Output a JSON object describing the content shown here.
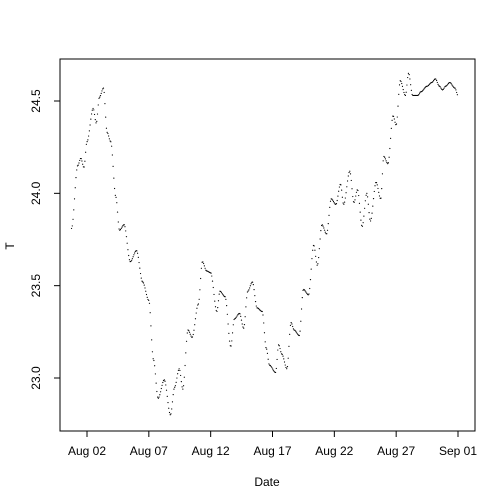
{
  "chart_data": {
    "type": "scatter",
    "xlabel": "Date",
    "ylabel": "T",
    "x_tick_labels": [
      "Aug 02",
      "Aug 07",
      "Aug 12",
      "Aug 17",
      "Aug 22",
      "Aug 27",
      "Sep 01"
    ],
    "x_tick_days": [
      2,
      7,
      12,
      17,
      22,
      27,
      32
    ],
    "y_ticks": [
      23.0,
      23.5,
      24.0,
      24.5
    ],
    "y_tick_labels": [
      "23.0",
      "23.5",
      "24.0",
      "24.5"
    ],
    "xlim": [
      "Jul 31",
      "Sep 02"
    ],
    "ylim": [
      22.73,
      24.76
    ],
    "grid": false,
    "point_style": "small black dots forming a continuous dotted curve",
    "series": [
      {
        "x": [
          "Jul 31 18:00",
          "Aug 01 06:00",
          "Aug 01 12:00",
          "Aug 01 18:00",
          "Aug 02 00:00",
          "Aug 02 12:00",
          "Aug 02 18:00",
          "Aug 03 00:00",
          "Aug 03 08:00",
          "Aug 03 15:00",
          "Aug 03 22:00",
          "Aug 04 08:00",
          "Aug 04 15:00",
          "Aug 05 00:00",
          "Aug 05 12:00",
          "Aug 06 00:00",
          "Aug 06 12:00",
          "Aug 07 00:00",
          "Aug 07 09:00",
          "Aug 07 18:00",
          "Aug 08 06:00",
          "Aug 08 18:00",
          "Aug 09 02:00",
          "Aug 09 11:00",
          "Aug 09 18:00",
          "Aug 10 04:00",
          "Aug 10 12:00",
          "Aug 11 00:00",
          "Aug 11 08:00",
          "Aug 11 16:00",
          "Aug 12 00:00",
          "Aug 12 12:00",
          "Aug 12 18:00",
          "Aug 13 04:00",
          "Aug 13 15:00",
          "Aug 13 22:00",
          "Aug 14 08:00",
          "Aug 14 16:00",
          "Aug 15 00:00",
          "Aug 15 09:00",
          "Aug 15 18:00",
          "Aug 16 04:00",
          "Aug 16 12:00",
          "Aug 16 18:00",
          "Aug 17 06:00",
          "Aug 17 12:00",
          "Aug 17 18:00",
          "Aug 18 04:00",
          "Aug 18 12:00",
          "Aug 18 18:00",
          "Aug 19 04:00",
          "Aug 19 12:00",
          "Aug 19 22:00",
          "Aug 20 08:00",
          "Aug 20 15:00",
          "Aug 21 00:00",
          "Aug 21 09:00",
          "Aug 21 18:00",
          "Aug 22 03:00",
          "Aug 22 12:00",
          "Aug 22 18:00",
          "Aug 23 06:00",
          "Aug 23 14:00",
          "Aug 23 21:00",
          "Aug 24 06:00",
          "Aug 24 15:00",
          "Aug 24 22:00",
          "Aug 25 09:00",
          "Aug 25 18:00",
          "Aug 26 00:00",
          "Aug 26 08:00",
          "Aug 26 18:00",
          "Aug 27 00:00",
          "Aug 27 08:00",
          "Aug 27 18:00",
          "Aug 28 00:00",
          "Aug 28 08:00",
          "Aug 28 18:00",
          "Aug 29 00:00",
          "Aug 29 12:00",
          "Aug 29 21:00",
          "Aug 30 04:00",
          "Aug 30 12:00",
          "Aug 30 18:00",
          "Aug 31 00:00",
          "Aug 31 08:00",
          "Aug 31 18:00",
          "Sep 01 00:00"
        ],
        "y": [
          23.81,
          24.15,
          24.19,
          24.14,
          24.28,
          24.46,
          24.38,
          24.52,
          24.57,
          24.33,
          24.28,
          23.98,
          23.8,
          23.83,
          23.63,
          23.69,
          23.52,
          23.42,
          23.1,
          22.89,
          22.99,
          22.8,
          22.95,
          23.05,
          22.94,
          23.26,
          23.22,
          23.4,
          23.63,
          23.58,
          23.57,
          23.36,
          23.47,
          23.44,
          23.17,
          23.32,
          23.35,
          23.27,
          23.47,
          23.52,
          23.38,
          23.36,
          23.16,
          23.07,
          23.03,
          23.18,
          23.13,
          23.05,
          23.3,
          23.26,
          23.23,
          23.48,
          23.45,
          23.72,
          23.61,
          23.83,
          23.78,
          23.97,
          23.94,
          24.05,
          23.94,
          24.12,
          23.95,
          24.02,
          23.82,
          24.0,
          23.85,
          24.06,
          23.97,
          24.2,
          24.16,
          24.42,
          24.37,
          24.61,
          24.53,
          24.65,
          24.53,
          24.53,
          24.55,
          24.58,
          24.6,
          24.62,
          24.58,
          24.56,
          24.58,
          24.6,
          24.57,
          24.53
        ]
      }
    ]
  }
}
